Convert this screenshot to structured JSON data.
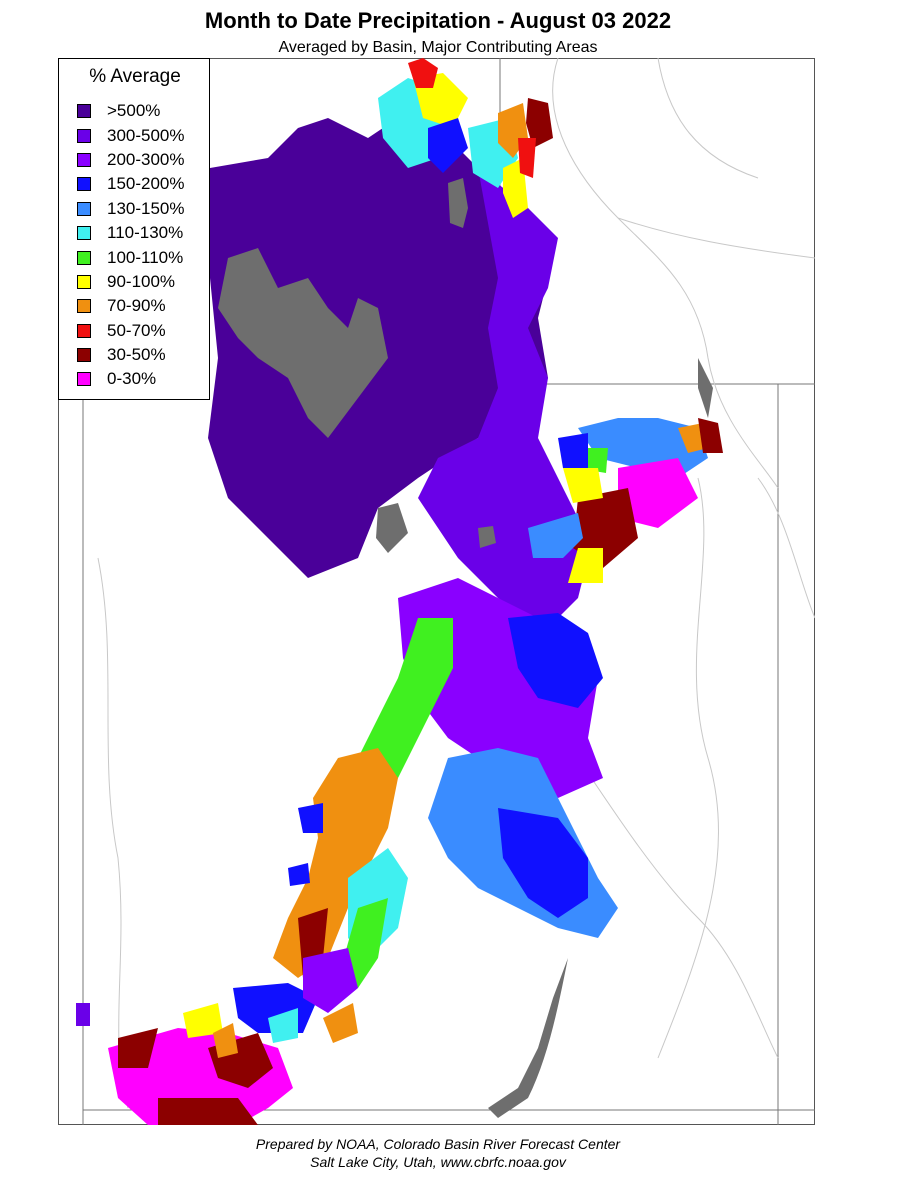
{
  "title": "Month to Date Precipitation - August 03 2022",
  "subtitle": "Averaged by Basin, Major Contributing Areas",
  "legend": {
    "title": "% Average",
    "items": [
      {
        "label": ">500%",
        "color": "#4a0099"
      },
      {
        "label": "300-500%",
        "color": "#6a00e8"
      },
      {
        "label": "200-300%",
        "color": "#8a00ff"
      },
      {
        "label": "150-200%",
        "color": "#1010ff"
      },
      {
        "label": "130-150%",
        "color": "#3a8cff"
      },
      {
        "label": "110-130%",
        "color": "#40f0f0"
      },
      {
        "label": "100-110%",
        "color": "#40f020"
      },
      {
        "label": "90-100%",
        "color": "#ffff00"
      },
      {
        "label": "70-90%",
        "color": "#f09010"
      },
      {
        "label": "50-70%",
        "color": "#f01010"
      },
      {
        "label": "30-50%",
        "color": "#8c0000"
      },
      {
        "label": "0-30%",
        "color": "#ff00ff"
      }
    ]
  },
  "lake_color": "#6e6e6e",
  "credit": {
    "line1": "Prepared by NOAA, Colorado Basin River Forecast Center",
    "line2": "Salt Lake City, Utah, www.cbrfc.noaa.gov"
  }
}
